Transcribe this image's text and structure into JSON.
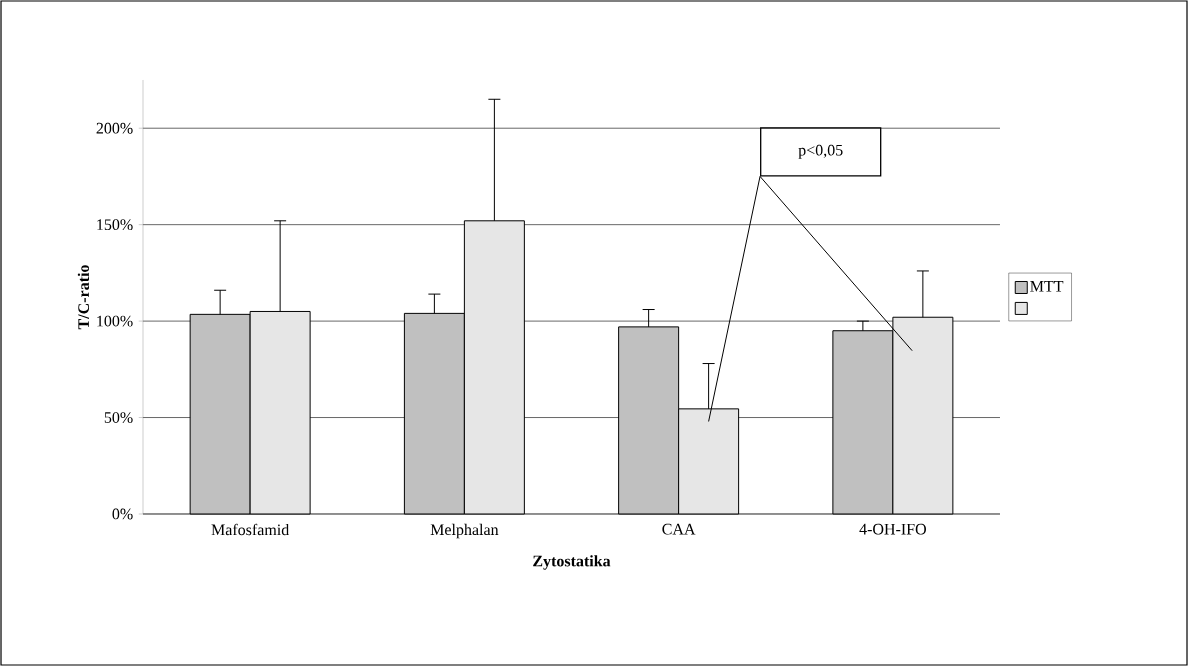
{
  "chart_data": {
    "type": "bar",
    "xlabel": "Zytostatika",
    "ylabel": "T/C-ratio",
    "categories": [
      "Mafosfamid",
      "Melphalan",
      "CAA",
      "4-OH-IFO"
    ],
    "series": [
      {
        "name": "MTT",
        "color": "#c0c0c0",
        "values": [
          103.5,
          104,
          97,
          95
        ],
        "errors": [
          [
            103.5,
            116
          ],
          [
            104,
            114
          ],
          [
            97,
            106
          ],
          [
            95,
            100
          ]
        ]
      },
      {
        "color": "#e6e6e6",
        "values": [
          105,
          152,
          54.5,
          102
        ],
        "errors": [
          [
            105,
            152
          ],
          [
            152,
            215
          ],
          [
            54.5,
            78
          ],
          [
            102,
            126
          ]
        ]
      }
    ],
    "ylim": [
      0,
      225
    ],
    "yticks": [
      {
        "value": 0,
        "label": "0%"
      },
      {
        "value": 50,
        "label": "50%"
      },
      {
        "value": 100,
        "label": "100%"
      },
      {
        "value": 150,
        "label": "150%"
      },
      {
        "value": 200,
        "label": "200%"
      }
    ],
    "grid": "y",
    "legend": "right",
    "annotations": [
      "p<0,05"
    ]
  }
}
